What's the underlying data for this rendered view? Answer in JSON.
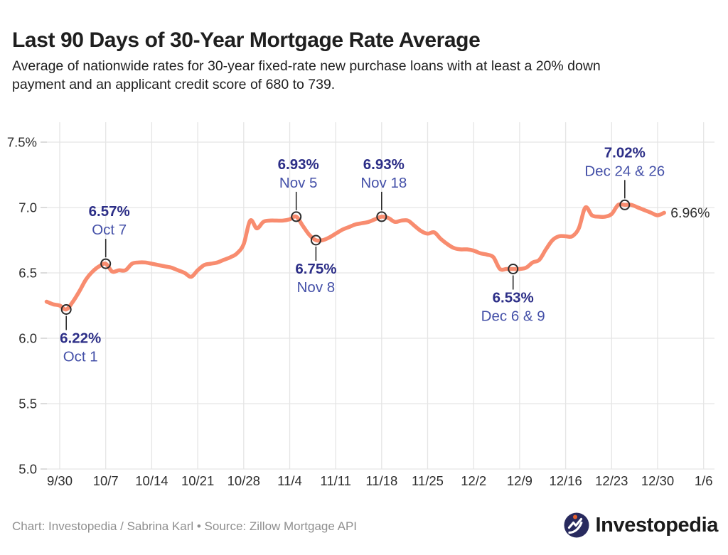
{
  "header": {
    "title": "Last 90 Days of 30-Year Mortgage Rate Average",
    "subtitle_line1": "Average of nationwide rates for 30-year fixed-rate new purchase loans with at least a 20% down",
    "subtitle_line2": "payment and an applicant credit score of 680 to 739."
  },
  "footer": {
    "credit": "Chart: Investopedia / Sabrina Karl • Source: Zillow Mortgage API",
    "brand": "Investopedia"
  },
  "branding": {
    "navy": "#282A5E",
    "orange": "#E4612E",
    "white": "#FFFFFF"
  },
  "chart_data": {
    "type": "line",
    "title": "Last 90 Days of 30-Year Mortgage Rate Average",
    "xlabel": "",
    "ylabel": "",
    "ylim": [
      5.0,
      7.5
    ],
    "grid": true,
    "legend": "none",
    "end_label": "6.96%",
    "colors": {
      "line": "#F88C6F",
      "annotation_value": "#2C2E87",
      "annotation_date": "#4450A8",
      "marker_stroke": "#2B2B2B",
      "grid": "#E5E5E5",
      "tick": "#C8C8C8",
      "axis_text": "#2D2D2D",
      "end_label_text": "#2E2E2E"
    },
    "y_ticks": [
      {
        "v": 7.5,
        "label": "7.5%"
      },
      {
        "v": 7.0,
        "label": "7.0"
      },
      {
        "v": 6.5,
        "label": "6.5"
      },
      {
        "v": 6.0,
        "label": "6.0"
      },
      {
        "v": 5.5,
        "label": "5.5"
      },
      {
        "v": 5.0,
        "label": "5.0"
      }
    ],
    "x_tick_labels": [
      "9/30",
      "10/7",
      "10/14",
      "10/21",
      "10/28",
      "11/4",
      "11/11",
      "11/18",
      "11/25",
      "12/2",
      "12/9",
      "12/16",
      "12/23",
      "12/30",
      "1/6"
    ],
    "annotations": [
      {
        "value": "6.22%",
        "date_label": "Oct 1",
        "at": "10/1",
        "y": 6.22,
        "side": "below",
        "dx": 20
      },
      {
        "value": "6.57%",
        "date_label": "Oct 7",
        "at": "10/7",
        "y": 6.57,
        "side": "above",
        "dx": 5
      },
      {
        "value": "6.93%",
        "date_label": "Nov 5",
        "at": "11/5",
        "y": 6.93,
        "side": "above",
        "dx": 3
      },
      {
        "value": "6.75%",
        "date_label": "Nov 8",
        "at": "11/8",
        "y": 6.75,
        "side": "below",
        "dx": 0
      },
      {
        "value": "6.93%",
        "date_label": "Nov 18",
        "at": "11/18",
        "y": 6.93,
        "side": "above",
        "dx": 3
      },
      {
        "value": "6.53%",
        "date_label": "Dec 6 & 9",
        "at": "12/8",
        "y": 6.53,
        "side": "below",
        "dx": 0
      },
      {
        "value": "7.02%",
        "date_label": "Dec 24 & 26",
        "at": "12/25",
        "y": 7.02,
        "side": "above",
        "dx": 0
      }
    ],
    "series": [
      {
        "name": "30-year mortgage rate average",
        "points": [
          [
            "9/28",
            6.28
          ],
          [
            "9/29",
            6.26
          ],
          [
            "9/30",
            6.25
          ],
          [
            "10/1",
            6.22
          ],
          [
            "10/2",
            6.28
          ],
          [
            "10/3",
            6.36
          ],
          [
            "10/4",
            6.45
          ],
          [
            "10/5",
            6.51
          ],
          [
            "10/6",
            6.55
          ],
          [
            "10/7",
            6.57
          ],
          [
            "10/8",
            6.51
          ],
          [
            "10/9",
            6.52
          ],
          [
            "10/10",
            6.52
          ],
          [
            "10/11",
            6.57
          ],
          [
            "10/12",
            6.58
          ],
          [
            "10/13",
            6.58
          ],
          [
            "10/14",
            6.57
          ],
          [
            "10/15",
            6.56
          ],
          [
            "10/16",
            6.55
          ],
          [
            "10/17",
            6.54
          ],
          [
            "10/18",
            6.52
          ],
          [
            "10/19",
            6.5
          ],
          [
            "10/20",
            6.47
          ],
          [
            "10/21",
            6.52
          ],
          [
            "10/22",
            6.56
          ],
          [
            "10/23",
            6.57
          ],
          [
            "10/24",
            6.58
          ],
          [
            "10/25",
            6.6
          ],
          [
            "10/26",
            6.62
          ],
          [
            "10/27",
            6.65
          ],
          [
            "10/28",
            6.72
          ],
          [
            "10/29",
            6.9
          ],
          [
            "10/30",
            6.84
          ],
          [
            "10/31",
            6.89
          ],
          [
            "11/1",
            6.9
          ],
          [
            "11/2",
            6.9
          ],
          [
            "11/3",
            6.9
          ],
          [
            "11/4",
            6.91
          ],
          [
            "11/5",
            6.93
          ],
          [
            "11/6",
            6.86
          ],
          [
            "11/7",
            6.79
          ],
          [
            "11/8",
            6.75
          ],
          [
            "11/9",
            6.75
          ],
          [
            "11/10",
            6.77
          ],
          [
            "11/11",
            6.8
          ],
          [
            "11/12",
            6.83
          ],
          [
            "11/13",
            6.85
          ],
          [
            "11/14",
            6.87
          ],
          [
            "11/15",
            6.88
          ],
          [
            "11/16",
            6.89
          ],
          [
            "11/17",
            6.91
          ],
          [
            "11/18",
            6.93
          ],
          [
            "11/19",
            6.92
          ],
          [
            "11/20",
            6.89
          ],
          [
            "11/21",
            6.9
          ],
          [
            "11/22",
            6.9
          ],
          [
            "11/23",
            6.86
          ],
          [
            "11/24",
            6.82
          ],
          [
            "11/25",
            6.8
          ],
          [
            "11/26",
            6.81
          ],
          [
            "11/27",
            6.76
          ],
          [
            "11/28",
            6.72
          ],
          [
            "11/29",
            6.69
          ],
          [
            "11/30",
            6.68
          ],
          [
            "12/1",
            6.68
          ],
          [
            "12/2",
            6.67
          ],
          [
            "12/3",
            6.65
          ],
          [
            "12/4",
            6.64
          ],
          [
            "12/5",
            6.62
          ],
          [
            "12/6",
            6.53
          ],
          [
            "12/7",
            6.53
          ],
          [
            "12/8",
            6.53
          ],
          [
            "12/9",
            6.53
          ],
          [
            "12/10",
            6.54
          ],
          [
            "12/11",
            6.58
          ],
          [
            "12/12",
            6.6
          ],
          [
            "12/13",
            6.68
          ],
          [
            "12/14",
            6.75
          ],
          [
            "12/15",
            6.78
          ],
          [
            "12/16",
            6.78
          ],
          [
            "12/17",
            6.78
          ],
          [
            "12/18",
            6.84
          ],
          [
            "12/19",
            7.0
          ],
          [
            "12/20",
            6.94
          ],
          [
            "12/21",
            6.93
          ],
          [
            "12/22",
            6.93
          ],
          [
            "12/23",
            6.95
          ],
          [
            "12/24",
            7.02
          ],
          [
            "12/25",
            7.02
          ],
          [
            "12/26",
            7.02
          ],
          [
            "12/27",
            7.0
          ],
          [
            "12/28",
            6.98
          ],
          [
            "12/29",
            6.96
          ],
          [
            "12/30",
            6.94
          ],
          [
            "12/31",
            6.96
          ]
        ]
      }
    ]
  }
}
